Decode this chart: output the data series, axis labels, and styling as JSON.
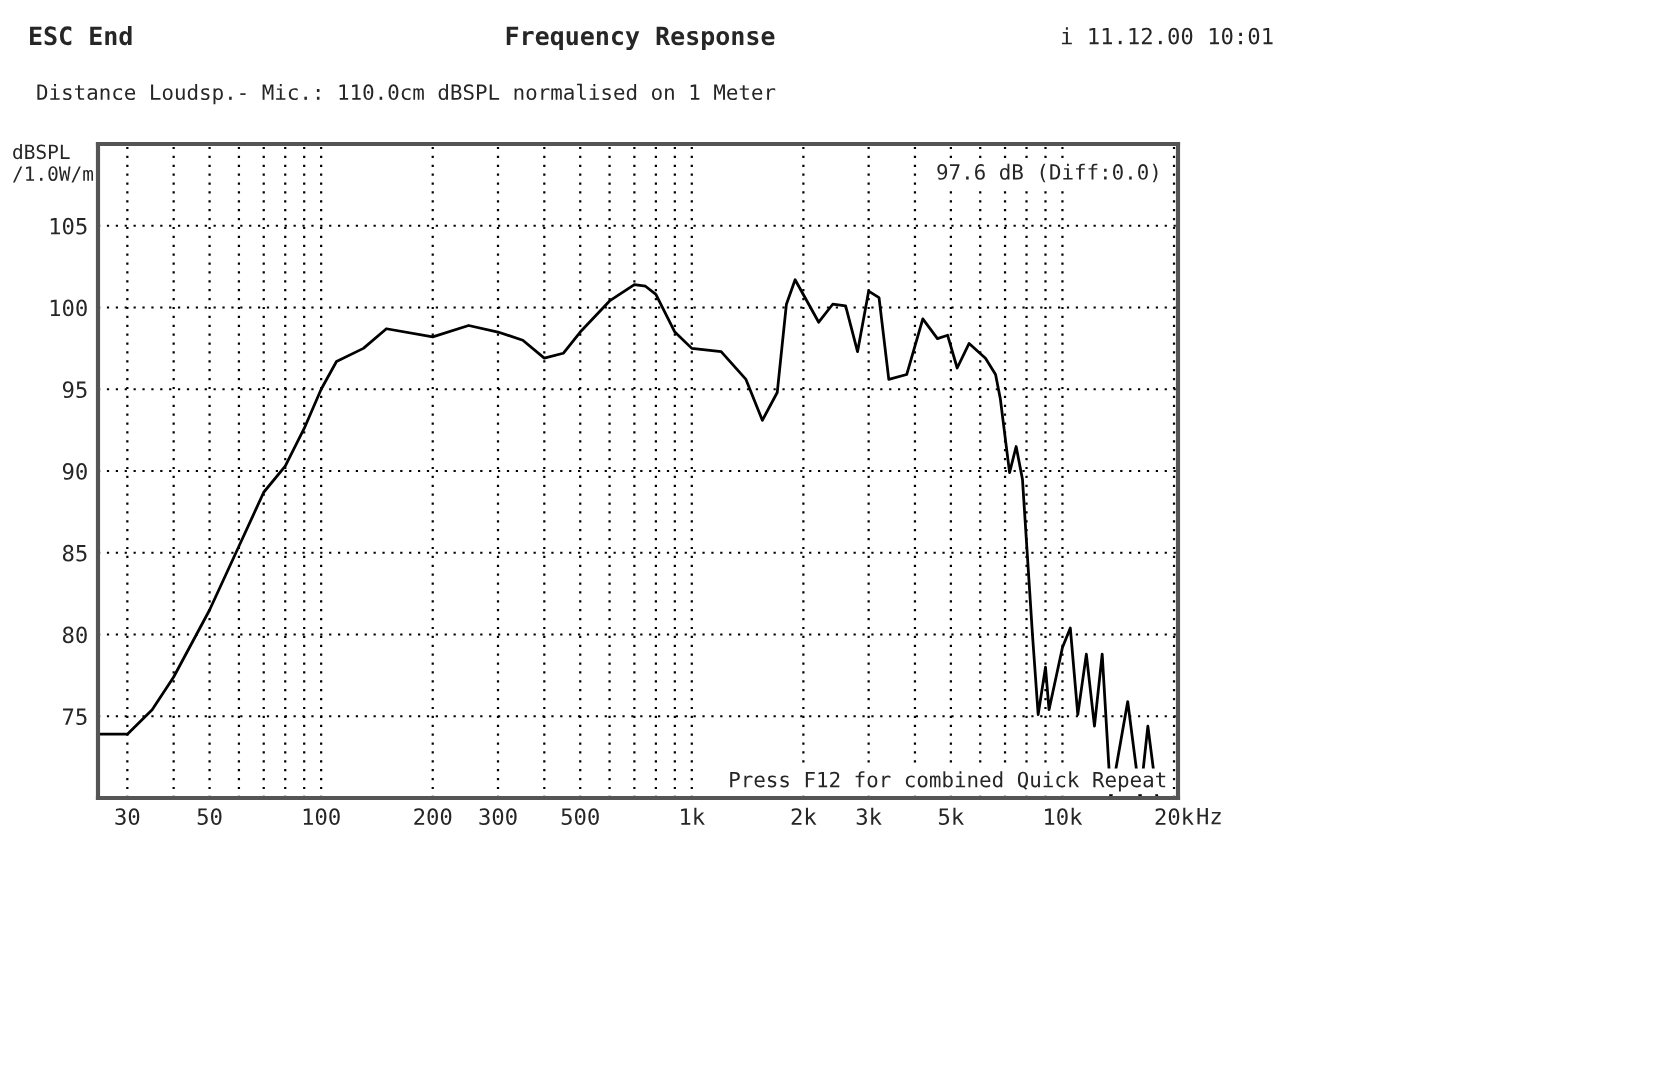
{
  "chart_data": {
    "type": "line",
    "title": "Frequency Response",
    "ylabel": "dBSPL\n/1.0W/m",
    "annotations": [
      "ESC End",
      "i 11.12.00 10:01",
      "Distance Loudsp.- Mic.: 110.0cm dBSPL normalised on 1 Meter",
      "97.6 dB (Diff:0.0)",
      "Press F12 for combined Quick Repeat"
    ],
    "log": "x",
    "grid": true,
    "line_style": "solid",
    "legend": false,
    "xlim": [
      25,
      20500
    ],
    "ylim": [
      70,
      110
    ],
    "xticks": [
      30,
      {
        "value": 40,
        "label": null
      },
      50,
      {
        "value": 60,
        "label": null
      },
      {
        "value": 70,
        "label": null
      },
      {
        "value": 80,
        "label": null
      },
      {
        "value": 90,
        "label": null
      },
      100,
      200,
      300,
      {
        "value": 400,
        "label": null
      },
      500,
      {
        "value": 600,
        "label": null
      },
      {
        "value": 700,
        "label": null
      },
      {
        "value": 800,
        "label": null
      },
      {
        "value": 900,
        "label": null
      },
      {
        "value": 1000,
        "label": "1k"
      },
      {
        "value": 2000,
        "label": "2k"
      },
      {
        "value": 3000,
        "label": "3k"
      },
      {
        "value": 4000,
        "label": null
      },
      {
        "value": 5000,
        "label": "5k"
      },
      {
        "value": 6000,
        "label": null
      },
      {
        "value": 7000,
        "label": null
      },
      {
        "value": 8000,
        "label": null
      },
      {
        "value": 9000,
        "label": null
      },
      {
        "value": 10000,
        "label": "10k"
      },
      {
        "value": 20000,
        "label": "20k"
      }
    ],
    "xlabel": "Hz",
    "yticks": [
      {
        "value": 70,
        "label": null
      },
      75,
      80,
      85,
      90,
      95,
      100,
      105
    ],
    "x": [
      25,
      30,
      35,
      40,
      50,
      60,
      70,
      80,
      90,
      100,
      110,
      130,
      150,
      200,
      250,
      300,
      350,
      400,
      450,
      500,
      600,
      700,
      750,
      800,
      900,
      1000,
      1200,
      1400,
      1550,
      1700,
      1800,
      1900,
      2200,
      2400,
      2600,
      2800,
      3000,
      3200,
      3400,
      3800,
      4200,
      4600,
      4900,
      5200,
      5600,
      6200,
      6600,
      6800,
      7200,
      7500,
      7800,
      8300,
      8600,
      9000,
      9200,
      10000,
      10500,
      11000,
      11600,
      12200,
      12800,
      13500,
      15000,
      16200,
      17000,
      18000
    ],
    "series": [
      {
        "color": "#000000",
        "values": [
          73.9,
          73.9,
          75.4,
          77.4,
          81.5,
          85.4,
          88.7,
          90.3,
          92.6,
          95.0,
          96.7,
          97.5,
          98.7,
          98.2,
          98.9,
          98.5,
          98.0,
          96.9,
          97.2,
          98.5,
          100.4,
          101.4,
          101.3,
          100.8,
          98.5,
          97.5,
          97.3,
          95.6,
          93.1,
          94.8,
          100.2,
          101.7,
          99.1,
          100.2,
          100.1,
          97.3,
          101.0,
          100.6,
          95.6,
          95.9,
          99.3,
          98.1,
          98.3,
          96.3,
          97.8,
          96.9,
          95.9,
          94.4,
          89.9,
          91.5,
          89.5,
          80.0,
          75.1,
          78.0,
          75.4,
          79.2,
          80.4,
          75.1,
          78.8,
          74.4,
          78.8,
          70.0,
          75.9,
          70.0,
          74.4,
          70.0
        ]
      }
    ]
  }
}
